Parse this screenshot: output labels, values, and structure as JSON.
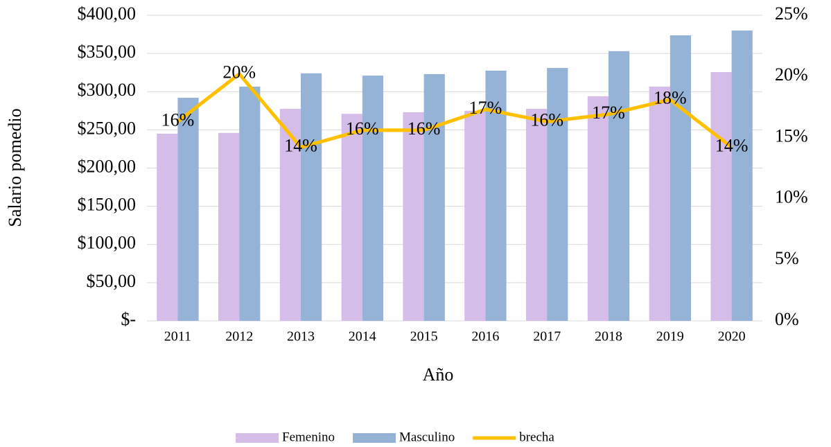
{
  "chart_data": {
    "type": "bar",
    "x_label": "Año",
    "y_label": "Salario pomedio",
    "categories": [
      "2011",
      "2012",
      "2013",
      "2014",
      "2015",
      "2016",
      "2017",
      "2018",
      "2019",
      "2020"
    ],
    "series": [
      {
        "name": "Femenino",
        "color": "#d5bde9",
        "values": [
          245,
          246,
          277.5,
          271,
          273,
          275,
          277.5,
          294,
          306.6,
          325.6
        ]
      },
      {
        "name": "Masculino",
        "color": "#95b3d7",
        "values": [
          292,
          306.6,
          324,
          321,
          323,
          327.5,
          331,
          353,
          373.7,
          380
        ]
      },
      {
        "name": "brecha",
        "type": "line",
        "axis": "y2",
        "color": "#ffc000",
        "values": [
          16.3,
          20.2,
          14.2,
          15.6,
          15.6,
          17.3,
          16.3,
          16.9,
          18.1,
          14.2
        ],
        "value_labels": [
          "16%",
          "20%",
          "14%",
          "16%",
          "16%",
          "17%",
          "16%",
          "17%",
          "18%",
          "14%"
        ]
      }
    ],
    "ylim": [
      0,
      400
    ],
    "yticks": [
      {
        "value": 0,
        "label": "$-"
      },
      {
        "value": 50,
        "label": "$50,00"
      },
      {
        "value": 100,
        "label": "$100,00"
      },
      {
        "value": 150,
        "label": "$150,00"
      },
      {
        "value": 200,
        "label": "$200,00"
      },
      {
        "value": 250,
        "label": "$250,00"
      },
      {
        "value": 300,
        "label": "$300,00"
      },
      {
        "value": 350,
        "label": "$350,00"
      },
      {
        "value": 400,
        "label": "$400,00"
      }
    ],
    "y2lim": [
      0,
      25
    ],
    "y2ticks": [
      {
        "value": 0,
        "label": "0%"
      },
      {
        "value": 5,
        "label": "5%"
      },
      {
        "value": 10,
        "label": "10%"
      },
      {
        "value": 15,
        "label": "15%"
      },
      {
        "value": 20,
        "label": "20%"
      },
      {
        "value": 25,
        "label": "25%"
      }
    ],
    "grid": true,
    "legend": "bottom"
  }
}
